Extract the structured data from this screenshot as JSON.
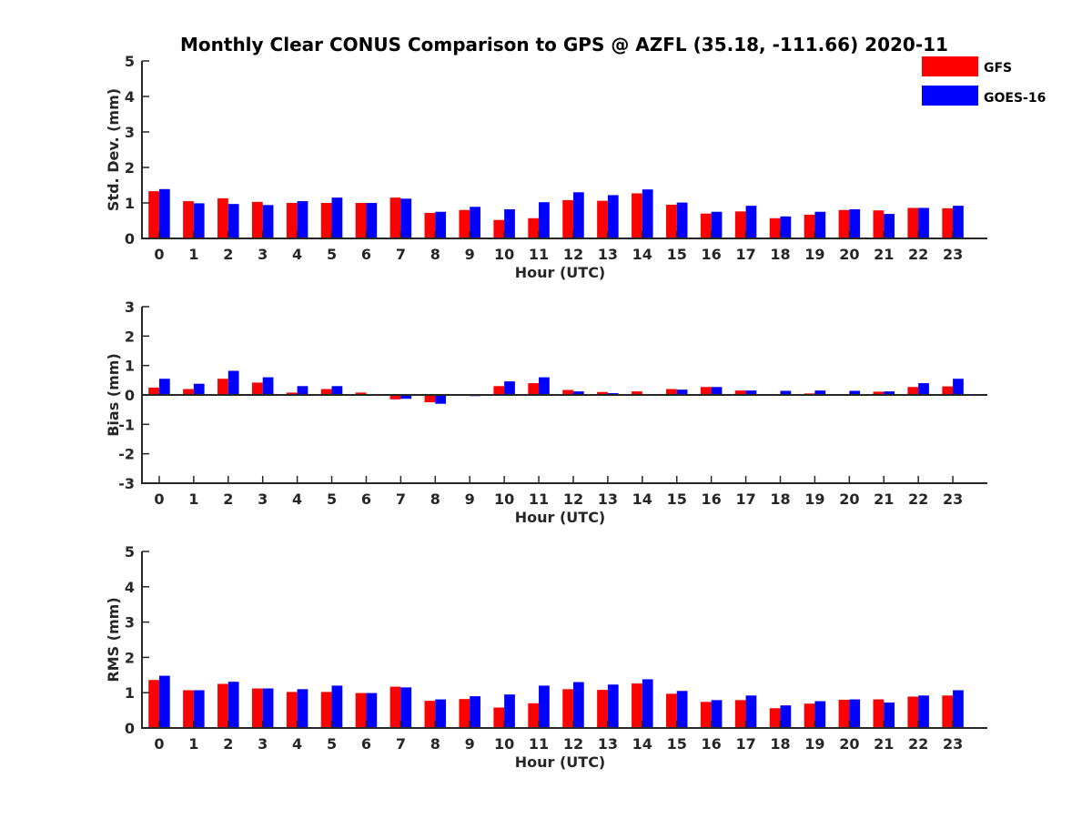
{
  "title": "Monthly Clear CONUS Comparison to GPS @ AZFL (35.18, -111.66) 2020-11",
  "legend": [
    {
      "name": "GFS",
      "color": "#ff0000"
    },
    {
      "name": "GOES-16",
      "color": "#0000ff"
    }
  ],
  "chart_data": [
    {
      "type": "bar",
      "title": "Monthly Clear CONUS Comparison to GPS @ AZFL (35.18, -111.66) 2020-11",
      "xlabel": "Hour (UTC)",
      "ylabel": "Std. Dev. (mm)",
      "ylim": [
        0,
        5
      ],
      "yticks": [
        0,
        1,
        2,
        3,
        4,
        5
      ],
      "categories": [
        "0",
        "1",
        "2",
        "3",
        "4",
        "5",
        "6",
        "7",
        "8",
        "9",
        "10",
        "11",
        "12",
        "13",
        "14",
        "15",
        "16",
        "17",
        "18",
        "19",
        "20",
        "21",
        "22",
        "23"
      ],
      "series": [
        {
          "name": "GFS",
          "color": "#ff0000",
          "values": [
            1.33,
            1.05,
            1.13,
            1.03,
            1.0,
            1.0,
            1.0,
            1.15,
            0.72,
            0.8,
            0.52,
            0.57,
            1.08,
            1.06,
            1.27,
            0.95,
            0.7,
            0.76,
            0.57,
            0.67,
            0.8,
            0.79,
            0.86,
            0.85
          ]
        },
        {
          "name": "GOES-16",
          "color": "#0000ff",
          "values": [
            1.39,
            0.99,
            0.97,
            0.94,
            1.05,
            1.15,
            1.0,
            1.12,
            0.75,
            0.89,
            0.82,
            1.02,
            1.3,
            1.22,
            1.38,
            1.01,
            0.75,
            0.92,
            0.62,
            0.75,
            0.82,
            0.69,
            0.86,
            0.92
          ]
        }
      ]
    },
    {
      "type": "bar",
      "xlabel": "Hour (UTC)",
      "ylabel": "Bias (mm)",
      "ylim": [
        -3,
        3
      ],
      "yticks": [
        -3,
        -2,
        -1,
        0,
        1,
        2,
        3
      ],
      "categories": [
        "0",
        "1",
        "2",
        "3",
        "4",
        "5",
        "6",
        "7",
        "8",
        "9",
        "10",
        "11",
        "12",
        "13",
        "14",
        "15",
        "16",
        "17",
        "18",
        "19",
        "20",
        "21",
        "22",
        "23"
      ],
      "series": [
        {
          "name": "GFS",
          "color": "#ff0000",
          "values": [
            0.25,
            0.2,
            0.55,
            0.42,
            0.08,
            0.2,
            0.08,
            -0.15,
            -0.25,
            -0.03,
            0.3,
            0.4,
            0.17,
            0.1,
            0.12,
            0.2,
            0.27,
            0.15,
            0.0,
            0.05,
            0.0,
            0.11,
            0.27,
            0.29
          ]
        },
        {
          "name": "GOES-16",
          "color": "#0000ff",
          "values": [
            0.55,
            0.38,
            0.82,
            0.6,
            0.3,
            0.3,
            0.02,
            -0.13,
            -0.3,
            -0.04,
            0.46,
            0.6,
            0.12,
            0.06,
            0.02,
            0.18,
            0.27,
            0.15,
            0.14,
            0.15,
            0.14,
            0.12,
            0.4,
            0.55
          ]
        }
      ]
    },
    {
      "type": "bar",
      "xlabel": "Hour (UTC)",
      "ylabel": "RMS (mm)",
      "ylim": [
        0,
        5
      ],
      "yticks": [
        0,
        1,
        2,
        3,
        4,
        5
      ],
      "categories": [
        "0",
        "1",
        "2",
        "3",
        "4",
        "5",
        "6",
        "7",
        "8",
        "9",
        "10",
        "11",
        "12",
        "13",
        "14",
        "15",
        "16",
        "17",
        "18",
        "19",
        "20",
        "21",
        "22",
        "23"
      ],
      "series": [
        {
          "name": "GFS",
          "color": "#ff0000",
          "values": [
            1.36,
            1.07,
            1.25,
            1.12,
            1.02,
            1.02,
            0.99,
            1.17,
            0.77,
            0.82,
            0.58,
            0.7,
            1.1,
            1.08,
            1.26,
            0.97,
            0.74,
            0.79,
            0.56,
            0.69,
            0.8,
            0.81,
            0.89,
            0.92
          ]
        },
        {
          "name": "GOES-16",
          "color": "#0000ff",
          "values": [
            1.48,
            1.07,
            1.31,
            1.12,
            1.1,
            1.2,
            0.99,
            1.15,
            0.81,
            0.9,
            0.95,
            1.2,
            1.3,
            1.23,
            1.38,
            1.05,
            0.79,
            0.92,
            0.64,
            0.76,
            0.81,
            0.72,
            0.92,
            1.07
          ]
        }
      ]
    }
  ]
}
